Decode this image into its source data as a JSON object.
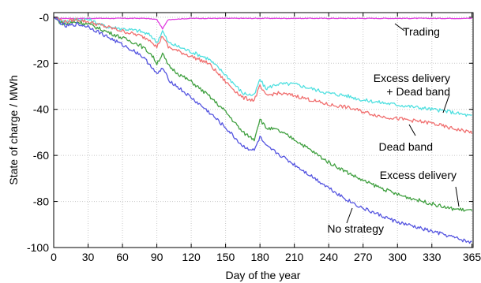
{
  "chart_data": {
    "type": "line",
    "title": "",
    "xlabel": "Day of the year",
    "ylabel": "State of charge / MWh",
    "xlim": [
      0,
      366
    ],
    "ylim": [
      -100,
      2
    ],
    "grid": true,
    "x_ticks": [
      0,
      30,
      60,
      90,
      120,
      150,
      180,
      210,
      240,
      270,
      300,
      330,
      365
    ],
    "y_ticks": [
      -100,
      -80,
      -60,
      -40,
      -20,
      0
    ],
    "y_tick_labels": [
      "-100",
      "-80",
      "-60",
      "-40",
      "-20",
      "-0"
    ],
    "series": [
      {
        "name": "Trading",
        "color": "#e040e0",
        "x": [
          0,
          5,
          10,
          20,
          30,
          60,
          80,
          90,
          95,
          100,
          120,
          150,
          180,
          210,
          240,
          270,
          300,
          330,
          365
        ],
        "y": [
          0,
          -0.5,
          -0.5,
          -0.5,
          -0.5,
          -0.5,
          -0.5,
          -1,
          -5,
          -1,
          -0.5,
          -0.5,
          -0.5,
          -0.5,
          -0.5,
          -0.5,
          -0.5,
          -0.5,
          -0.5
        ]
      },
      {
        "name": "Excess delivery + Dead band",
        "color": "#50e0e0",
        "x": [
          0,
          5,
          10,
          20,
          30,
          45,
          60,
          75,
          85,
          90,
          95,
          100,
          110,
          120,
          135,
          150,
          165,
          175,
          180,
          185,
          195,
          210,
          225,
          240,
          255,
          270,
          285,
          300,
          315,
          330,
          345,
          365
        ],
        "y": [
          0,
          -1,
          -2,
          -1,
          -1,
          -4,
          -5,
          -6,
          -8,
          -11,
          -6,
          -11,
          -13,
          -15,
          -18,
          -25,
          -33,
          -34,
          -27,
          -31,
          -29,
          -29,
          -31,
          -33,
          -34,
          -36,
          -37,
          -38,
          -39,
          -40,
          -41,
          -43
        ]
      },
      {
        "name": "Dead band",
        "color": "#f07070",
        "x": [
          0,
          5,
          10,
          20,
          30,
          45,
          60,
          75,
          85,
          90,
          95,
          100,
          110,
          120,
          135,
          150,
          165,
          175,
          180,
          185,
          195,
          210,
          225,
          240,
          255,
          270,
          285,
          300,
          315,
          330,
          345,
          365
        ],
        "y": [
          0,
          -1,
          -2,
          -1,
          -2,
          -4,
          -6,
          -8,
          -10,
          -13,
          -8,
          -13,
          -15,
          -17,
          -20,
          -28,
          -35,
          -36,
          -30,
          -34,
          -33,
          -34,
          -36,
          -38,
          -39,
          -41,
          -43,
          -44,
          -45,
          -46,
          -48,
          -50
        ]
      },
      {
        "name": "Excess delivery",
        "color": "#40a040",
        "x": [
          0,
          5,
          10,
          20,
          30,
          45,
          60,
          75,
          85,
          90,
          95,
          100,
          110,
          120,
          135,
          150,
          165,
          175,
          180,
          185,
          195,
          210,
          225,
          240,
          255,
          270,
          285,
          300,
          315,
          330,
          345,
          365
        ],
        "y": [
          0,
          -2,
          -3,
          -2,
          -3,
          -6,
          -9,
          -12,
          -16,
          -20,
          -16,
          -21,
          -25,
          -28,
          -34,
          -41,
          -50,
          -53,
          -44,
          -48,
          -49,
          -53,
          -58,
          -63,
          -67,
          -71,
          -74,
          -77,
          -79,
          -81,
          -83,
          -84
        ]
      },
      {
        "name": "No strategy",
        "color": "#5555e0",
        "x": [
          0,
          5,
          10,
          20,
          30,
          45,
          60,
          75,
          85,
          90,
          95,
          100,
          110,
          120,
          135,
          150,
          165,
          175,
          180,
          185,
          195,
          210,
          225,
          240,
          255,
          270,
          285,
          300,
          315,
          330,
          345,
          365
        ],
        "y": [
          0,
          -2,
          -4,
          -3,
          -4,
          -8,
          -12,
          -16,
          -21,
          -25,
          -22,
          -27,
          -31,
          -35,
          -41,
          -48,
          -56,
          -58,
          -52,
          -56,
          -59,
          -64,
          -69,
          -74,
          -79,
          -83,
          -86,
          -89,
          -91,
          -93,
          -95,
          -98
        ]
      }
    ],
    "annotations": [
      {
        "lines": [
          "Trading"
        ],
        "series": "Trading"
      },
      {
        "lines": [
          "Excess delivery",
          "+ Dead band"
        ],
        "series": "Excess delivery + Dead band"
      },
      {
        "lines": [
          "Dead band"
        ],
        "series": "Dead band"
      },
      {
        "lines": [
          "Excess delivery"
        ],
        "series": "Excess delivery"
      },
      {
        "lines": [
          "No strategy"
        ],
        "series": "No strategy"
      }
    ]
  }
}
